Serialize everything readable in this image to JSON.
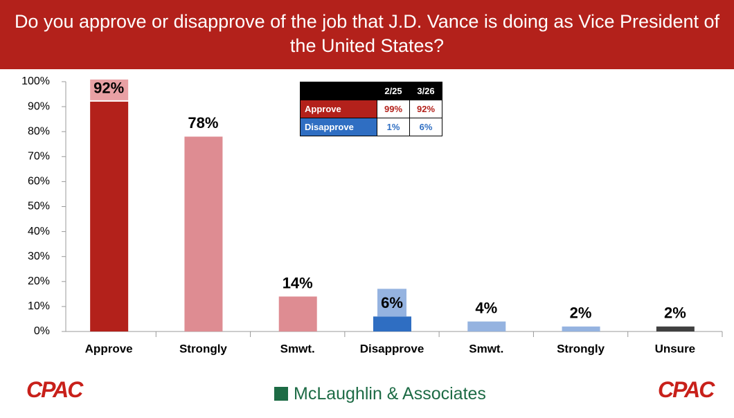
{
  "chart_data": {
    "type": "bar",
    "title": "Do you approve or disapprove of the job that J.D. Vance is doing as Vice President of the United States?",
    "categories": [
      "Approve",
      "Strongly",
      "Smwt.",
      "Disapprove",
      "Smwt.",
      "Strongly",
      "Unsure"
    ],
    "values": [
      92,
      78,
      14,
      6,
      4,
      2,
      2
    ],
    "value_labels": [
      "92%",
      "78%",
      "14%",
      "6%",
      "4%",
      "2%",
      "2%"
    ],
    "colors": [
      "#b3211b",
      "#de8c92",
      "#de8c92",
      "#2f6ec2",
      "#95b3e0",
      "#95b3e0",
      "#404040"
    ],
    "ylim": [
      0,
      100
    ],
    "yticks": [
      {
        "value": 0,
        "label": "0%"
      },
      {
        "value": 10,
        "label": "10%"
      },
      {
        "value": 20,
        "label": "20%"
      },
      {
        "value": 30,
        "label": "30%"
      },
      {
        "value": 40,
        "label": "40%"
      },
      {
        "value": 50,
        "label": "50%"
      },
      {
        "value": 60,
        "label": "60%"
      },
      {
        "value": 70,
        "label": "70%"
      },
      {
        "value": 80,
        "label": "80%"
      },
      {
        "value": 90,
        "label": "90%"
      },
      {
        "value": 100,
        "label": "100%"
      }
    ],
    "grid": false
  },
  "table": {
    "columns": [
      "2/25",
      "3/26"
    ],
    "rows": [
      {
        "label": "Approve",
        "values": [
          "99%",
          "92%"
        ]
      },
      {
        "label": "Disapprove",
        "values": [
          "1%",
          "6%"
        ]
      }
    ]
  },
  "footer": {
    "logo": "CPAC",
    "pollster": "McLaughlin & Associates"
  }
}
